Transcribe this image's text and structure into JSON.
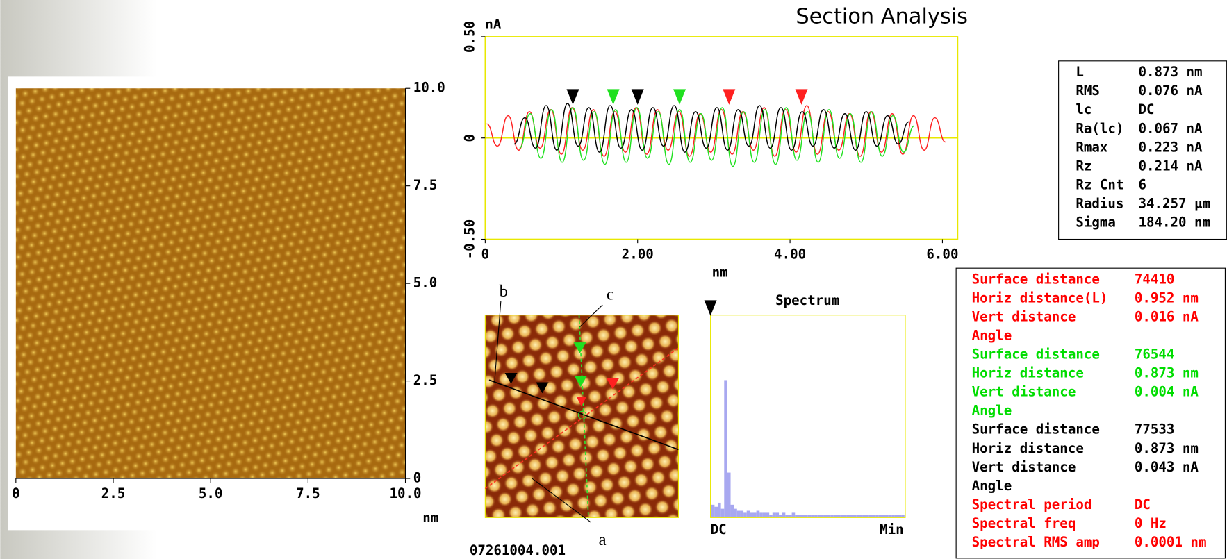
{
  "title": "Section Analysis",
  "profile": {
    "type": "line",
    "y_unit": "nA",
    "x_label": "nm",
    "xlim": [
      0,
      6.2
    ],
    "ylim": [
      -0.5,
      0.5
    ],
    "xticks": [
      0,
      {
        "value": 2,
        "label": "2.00"
      },
      {
        "value": 4,
        "label": "4.00"
      },
      {
        "value": 6,
        "label": "6.00"
      }
    ],
    "yticks": [
      {
        "value": -0.5,
        "label": "-0.50"
      },
      0,
      {
        "value": 0.5,
        "label": "0.50"
      }
    ],
    "frame_color": "#e8e800",
    "series": [
      {
        "color": "#ff2020",
        "x": [
          0.02,
          0.16,
          0.3,
          0.44,
          0.58,
          0.72,
          0.86,
          1.0,
          1.14,
          1.28,
          1.42,
          1.56,
          1.7,
          1.84,
          1.98,
          2.12,
          2.26,
          2.4,
          2.54,
          2.68,
          2.82,
          2.96,
          3.1,
          3.24,
          3.38,
          3.52,
          3.66,
          3.8,
          3.94,
          4.08,
          4.22,
          4.36,
          4.5,
          4.64,
          4.78,
          4.92,
          5.06,
          5.2,
          5.34,
          5.48,
          5.62,
          5.76,
          5.9,
          6.04
        ],
        "values": [
          0.07,
          -0.04,
          0.11,
          -0.06,
          0.13,
          -0.05,
          0.14,
          -0.08,
          0.15,
          -0.06,
          0.14,
          -0.09,
          0.13,
          -0.07,
          0.15,
          -0.08,
          0.14,
          -0.06,
          0.13,
          -0.09,
          0.12,
          -0.07,
          0.14,
          -0.08,
          0.13,
          -0.06,
          0.15,
          -0.09,
          0.14,
          -0.07,
          0.16,
          -0.08,
          0.13,
          -0.06,
          0.12,
          -0.09,
          0.13,
          -0.07,
          0.12,
          -0.08,
          0.11,
          -0.06,
          0.1,
          -0.02
        ]
      },
      {
        "color": "#20e020",
        "x": [
          0.45,
          0.59,
          0.73,
          0.87,
          1.01,
          1.15,
          1.29,
          1.43,
          1.57,
          1.71,
          1.85,
          1.99,
          2.13,
          2.27,
          2.41,
          2.55,
          2.69,
          2.83,
          2.97,
          3.11,
          3.25,
          3.39,
          3.53,
          3.67,
          3.81,
          3.95,
          4.09,
          4.23,
          4.37,
          4.51,
          4.65,
          4.79,
          4.93,
          5.07,
          5.21,
          5.35,
          5.49,
          5.63
        ],
        "values": [
          -0.05,
          0.12,
          -0.1,
          0.14,
          -0.12,
          0.15,
          -0.11,
          0.13,
          -0.13,
          0.14,
          -0.12,
          0.15,
          -0.1,
          0.13,
          -0.13,
          0.14,
          -0.12,
          0.12,
          -0.11,
          0.15,
          -0.14,
          0.13,
          -0.12,
          0.14,
          -0.13,
          0.15,
          -0.11,
          0.13,
          -0.12,
          0.14,
          -0.1,
          0.12,
          -0.12,
          0.13,
          -0.09,
          0.11,
          -0.07,
          0.06
        ]
      },
      {
        "color": "#000000",
        "x": [
          0.38,
          0.52,
          0.66,
          0.8,
          0.94,
          1.08,
          1.22,
          1.36,
          1.5,
          1.64,
          1.78,
          1.92,
          2.06,
          2.2,
          2.34,
          2.48,
          2.62,
          2.76,
          2.9,
          3.04,
          3.18,
          3.32,
          3.46,
          3.6,
          3.74,
          3.88,
          4.02,
          4.16,
          4.3,
          4.44,
          4.58,
          4.72,
          4.86,
          5.0,
          5.14,
          5.28,
          5.42,
          5.56
        ],
        "values": [
          -0.03,
          0.1,
          -0.05,
          0.16,
          -0.06,
          0.17,
          -0.04,
          0.15,
          -0.07,
          0.16,
          -0.05,
          0.14,
          -0.06,
          0.15,
          -0.04,
          0.16,
          -0.07,
          0.13,
          -0.05,
          0.15,
          -0.06,
          0.14,
          -0.04,
          0.16,
          -0.05,
          0.15,
          -0.06,
          0.13,
          -0.04,
          0.14,
          -0.05,
          0.12,
          -0.06,
          0.13,
          -0.04,
          0.11,
          -0.03,
          0.08
        ]
      }
    ],
    "cursors": [
      {
        "color": "#000000",
        "x": 1.15
      },
      {
        "color": "#20e020",
        "x": 1.68
      },
      {
        "color": "#000000",
        "x": 2.0
      },
      {
        "color": "#20e020",
        "x": 2.55
      },
      {
        "color": "#ff2020",
        "x": 3.2
      },
      {
        "color": "#ff2020",
        "x": 4.15
      }
    ]
  },
  "image": {
    "unit": "nm",
    "xticks": [
      0,
      2.5,
      {
        "value": 5,
        "label": "5.0"
      },
      7.5,
      {
        "value": 10,
        "label": "10.0"
      }
    ],
    "yticks": [
      0,
      2.5,
      {
        "value": 5,
        "label": "5.0"
      },
      7.5,
      {
        "value": 10,
        "label": "10.0"
      }
    ],
    "lim": [
      0,
      10
    ]
  },
  "stats": [
    [
      "L",
      "0.873 nm"
    ],
    [
      "RMS",
      "0.076 nA"
    ],
    [
      "lc",
      "DC"
    ],
    [
      "Ra(lc)",
      "0.067 nA"
    ],
    [
      "Rmax",
      "0.223 nA"
    ],
    [
      "Rz",
      "0.214 nA"
    ],
    [
      "Rz Cnt",
      "6"
    ],
    [
      "Radius",
      "34.257 µm"
    ],
    [
      "Sigma",
      "184.20 nm"
    ]
  ],
  "measurements": [
    {
      "label": "Surface distance",
      "value": "74410",
      "color": "#ff0000"
    },
    {
      "label": "Horiz distance(L)",
      "value": "0.952 nm",
      "color": "#ff0000"
    },
    {
      "label": "Vert distance",
      "value": "0.016 nA",
      "color": "#ff0000"
    },
    {
      "label": "Angle",
      "color": "#ff0000"
    },
    {
      "label": "Surface distance",
      "value": "76544",
      "color": "#00dd00"
    },
    {
      "label": "Horiz distance",
      "value": "0.873 nm",
      "color": "#00dd00"
    },
    {
      "label": "Vert distance",
      "value": "0.004 nA",
      "color": "#00dd00"
    },
    {
      "label": "Angle",
      "color": "#00dd00"
    },
    {
      "label": "Surface distance",
      "value": "77533",
      "color": "#000000"
    },
    {
      "label": "Horiz distance",
      "value": "0.873 nm",
      "color": "#000000"
    },
    {
      "label": "Vert distance",
      "value": "0.043 nA",
      "color": "#000000"
    },
    {
      "label": "Angle",
      "color": "#000000"
    },
    {
      "label": "Spectral period",
      "value": "DC",
      "color": "#ff0000"
    },
    {
      "label": "Spectral freq",
      "value": "0 Hz",
      "color": "#ff0000"
    },
    {
      "label": "Spectral RMS amp",
      "value": "0.0001 nm",
      "color": "#ff0000"
    }
  ],
  "spectrum": {
    "title": "Spectrum",
    "start_label": "DC",
    "end_label": "Min",
    "color": "#a8a8f0",
    "ylim": [
      0,
      1
    ],
    "values": [
      0.06,
      0.05,
      0.07,
      0.04,
      0.68,
      0.22,
      0.06,
      0.04,
      0.03,
      0.03,
      0.02,
      0.03,
      0.02,
      0.02,
      0.03,
      0.02,
      0.02,
      0.02,
      0.01,
      0.02,
      0.02,
      0.01,
      0.02,
      0.01,
      0.01,
      0.02,
      0.01,
      0.01,
      0.01,
      0.01,
      0.01,
      0.01,
      0.01,
      0.01,
      0.01,
      0.01,
      0.01,
      0.01,
      0.01,
      0.01,
      0.01,
      0.01,
      0.01,
      0.01,
      0.01,
      0.01,
      0.01,
      0.01,
      0.01,
      0.01,
      0.01,
      0.01,
      0.01,
      0.01,
      0.01,
      0.01,
      0.01,
      0.01,
      0.01,
      0.01
    ]
  },
  "zoom": {
    "filename": "07261004.001",
    "labels": [
      "a",
      "b",
      "c"
    ]
  }
}
